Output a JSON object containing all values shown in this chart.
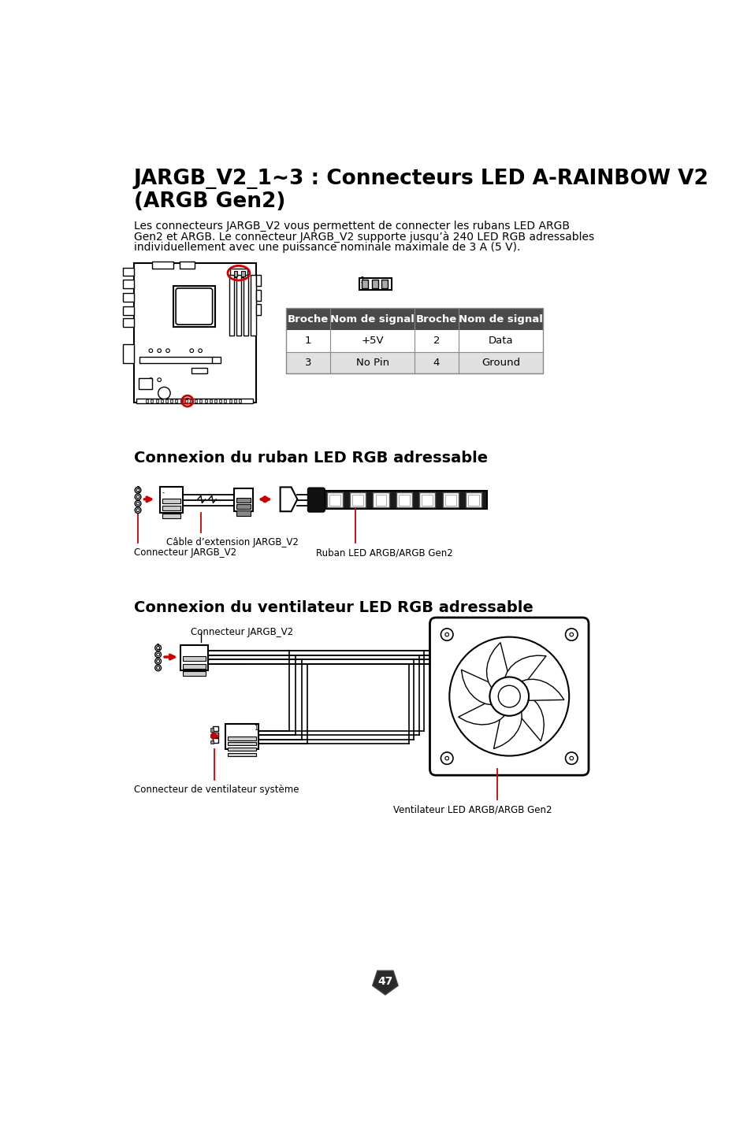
{
  "title_line1": "JARGB_V2_1~3 : Connecteurs LED A-RAINBOW V2",
  "title_line2": "(ARGB Gen2)",
  "body_text_line1": "Les connecteurs JARGB_V2 vous permettent de connecter les rubans LED ARGB",
  "body_text_line2": "Gen2 et ARGB. Le connecteur JARGB_V2 supporte jusqu’à 240 LED RGB adressables",
  "body_text_line3": "individuellement avec une puissance nominale maximale de 3 A (5 V).",
  "table_headers": [
    "Broche",
    "Nom de signal",
    "Broche",
    "Nom de signal"
  ],
  "table_rows": [
    [
      "1",
      "+5V",
      "2",
      "Data"
    ],
    [
      "3",
      "No Pin",
      "4",
      "Ground"
    ]
  ],
  "section1": "Connexion du ruban LED RGB adressable",
  "label_connecteur": "Connecteur JARGB_V2",
  "label_cable": "Câble d’extension JARGB_V2",
  "label_ruban": "Ruban LED ARGB/ARGB Gen2",
  "section2": "Connexion du ventilateur LED RGB adressable",
  "label_connecteur2": "Connecteur JARGB_V2",
  "label_connecteur_sys": "Connecteur de ventilateur système",
  "label_ventilateur": "Ventilateur LED ARGB/ARGB Gen2",
  "page_number": "47",
  "bg_color": "#ffffff",
  "header_bg": "#4a4a4a",
  "header_fg": "#ffffff",
  "row_alt_bg": "#e0e0e0",
  "red": "#cc0000"
}
